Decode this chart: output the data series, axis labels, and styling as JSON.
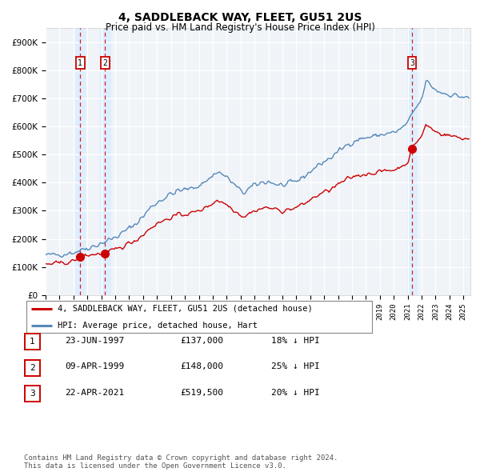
{
  "title": "4, SADDLEBACK WAY, FLEET, GU51 2US",
  "subtitle": "Price paid vs. HM Land Registry's House Price Index (HPI)",
  "ylim": [
    0,
    950000
  ],
  "yticks": [
    0,
    100000,
    200000,
    300000,
    400000,
    500000,
    600000,
    700000,
    800000,
    900000
  ],
  "ytick_labels": [
    "£0",
    "£100K",
    "£200K",
    "£300K",
    "£400K",
    "£500K",
    "£600K",
    "£700K",
    "£800K",
    "£900K"
  ],
  "xlim_start": 1995.0,
  "xlim_end": 2025.5,
  "sale_dates": [
    1997.479,
    1999.274,
    2021.308
  ],
  "sale_prices": [
    137000,
    148000,
    519500
  ],
  "sale_labels": [
    "1",
    "2",
    "3"
  ],
  "hpi_color": "#5588bb",
  "sale_color": "#cc0000",
  "shade_color": "#ddeeff",
  "legend_sale_label": "4, SADDLEBACK WAY, FLEET, GU51 2US (detached house)",
  "legend_hpi_label": "HPI: Average price, detached house, Hart",
  "table_rows": [
    [
      "1",
      "23-JUN-1997",
      "£137,000",
      "18% ↓ HPI"
    ],
    [
      "2",
      "09-APR-1999",
      "£148,000",
      "25% ↓ HPI"
    ],
    [
      "3",
      "22-APR-2021",
      "£519,500",
      "20% ↓ HPI"
    ]
  ],
  "footer": "Contains HM Land Registry data © Crown copyright and database right 2024.\nThis data is licensed under the Open Government Licence v3.0.",
  "background_color": "#f0f4f8",
  "title_fontsize": 10,
  "subtitle_fontsize": 8.5,
  "tick_fontsize": 7.5
}
